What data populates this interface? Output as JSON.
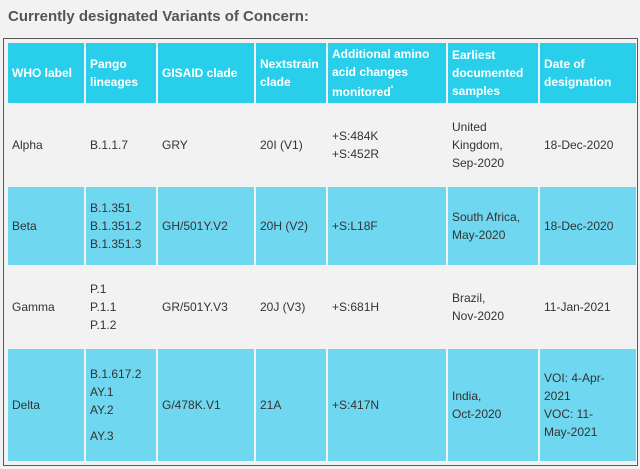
{
  "title": "Currently designated Variants of Concern:",
  "columns": [
    {
      "label": "WHO label"
    },
    {
      "label": "Pango lineages"
    },
    {
      "label": "GISAID clade"
    },
    {
      "label": "Nextstrain clade"
    },
    {
      "label": "Additional amino acid changes monitored",
      "sup": "°"
    },
    {
      "label": "Earliest documented samples"
    },
    {
      "label": "Date of designation"
    }
  ],
  "rows": [
    {
      "who": "Alpha",
      "pango": [
        "B.1.1.7"
      ],
      "gisaid": "GRY",
      "nextstrain": "20I (V1)",
      "aa_changes": [
        "+S:484K",
        "+S:452R"
      ],
      "earliest": [
        "United",
        "Kingdom,",
        "Sep-2020"
      ],
      "designation": [
        "18-Dec-2020"
      ]
    },
    {
      "who": "Beta",
      "pango": [
        "B.1.351",
        "B.1.351.2",
        "B.1.351.3"
      ],
      "gisaid": "GH/501Y.V2",
      "nextstrain": "20H (V2)",
      "aa_changes": [
        "+S:L18F"
      ],
      "earliest": [
        "South Africa,",
        "May-2020"
      ],
      "designation": [
        "18-Dec-2020"
      ]
    },
    {
      "who": "Gamma",
      "pango": [
        "P.1",
        "P.1.1",
        "P.1.2"
      ],
      "gisaid": "GR/501Y.V3",
      "nextstrain": "20J (V3)",
      "aa_changes": [
        "+S:681H"
      ],
      "earliest": [
        "Brazil,",
        "Nov-2020"
      ],
      "designation": [
        "11-Jan-2021"
      ]
    },
    {
      "who": "Delta",
      "pango": [
        "B.1.617.2",
        "AY.1",
        "AY.2",
        "",
        "AY.3"
      ],
      "gisaid": "G/478K.V1",
      "nextstrain": "21A",
      "aa_changes": [
        "+S:417N"
      ],
      "earliest": [
        "India,",
        "Oct-2020"
      ],
      "designation": [
        "VOI: 4-Apr-",
        "2021",
        "VOC: 11-",
        "May-2021"
      ]
    }
  ],
  "colors": {
    "header_bg": "#29cfea",
    "row_light": "#f2f2f2",
    "row_blue": "#6fd7f0"
  }
}
